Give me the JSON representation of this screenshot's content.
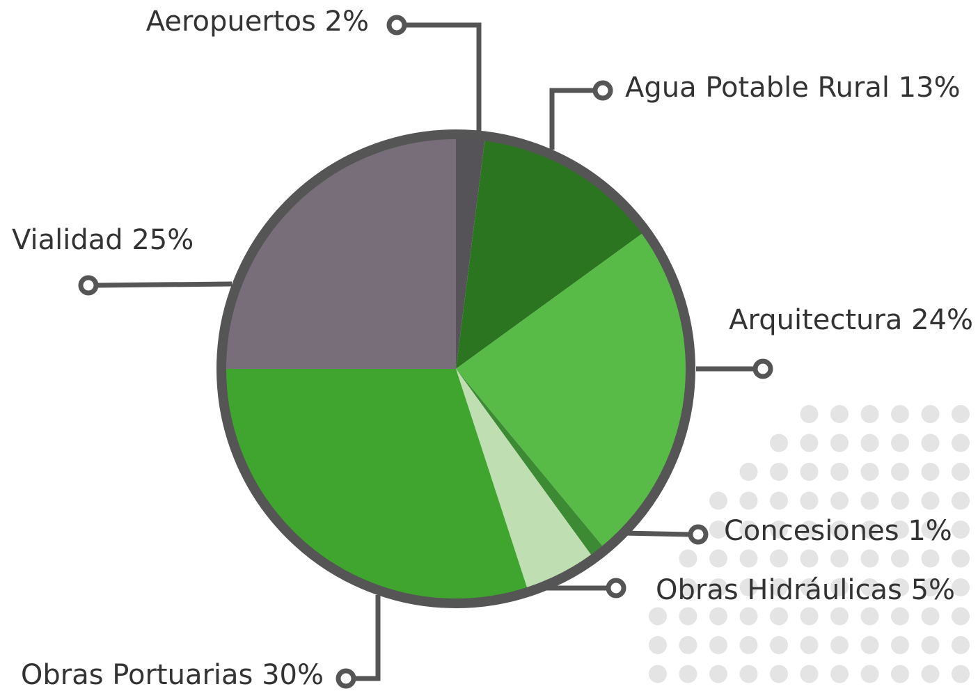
{
  "chart_data": {
    "type": "pie",
    "categories": [
      "Aeropuertos",
      "Agua Potable Rural",
      "Arquitectura",
      "Concesiones",
      "Obras Hidráulicas",
      "Obras Portuarias",
      "Vialidad"
    ],
    "values": [
      2,
      13,
      24,
      1,
      5,
      30,
      25
    ],
    "value_labels": [
      "2%",
      "13%",
      "24%",
      "1%",
      "5%",
      "30%",
      "25%"
    ],
    "colors": [
      "#555358",
      "#2b7521",
      "#58bb47",
      "#3c8a33",
      "#bfdfb3",
      "#3fa52e",
      "#776e7a"
    ]
  }
}
